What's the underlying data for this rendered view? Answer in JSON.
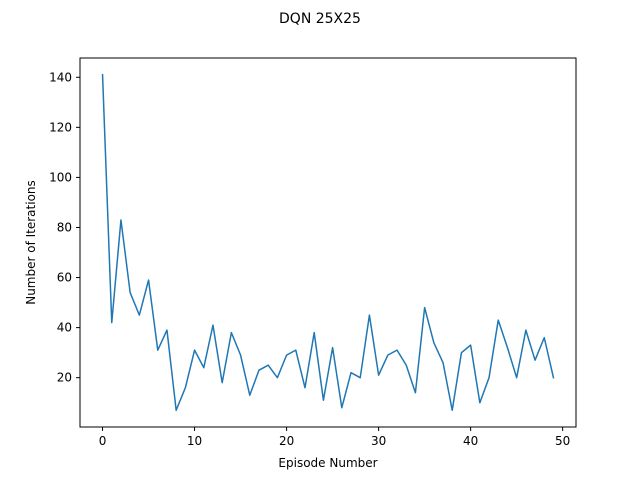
{
  "chart_data": {
    "type": "line",
    "title": "DQN 25X25",
    "xlabel": "Episode Number",
    "ylabel": "Number of Iterations",
    "xlim": [
      -2.45,
      51.45
    ],
    "ylim": [
      0.3,
      147.7
    ],
    "xticks": [
      0,
      10,
      20,
      30,
      40,
      50
    ],
    "yticks": [
      20,
      40,
      60,
      80,
      100,
      120,
      140
    ],
    "grid": false,
    "legend": "none",
    "series": [
      {
        "color": "#1f77b4",
        "x": [
          0,
          1,
          2,
          3,
          4,
          5,
          6,
          7,
          8,
          9,
          10,
          11,
          12,
          13,
          14,
          15,
          16,
          17,
          18,
          19,
          20,
          21,
          22,
          23,
          24,
          25,
          26,
          27,
          28,
          29,
          30,
          31,
          32,
          33,
          34,
          35,
          36,
          37,
          38,
          39,
          40,
          41,
          42,
          43,
          44,
          45,
          46,
          47,
          48,
          49
        ],
        "y": [
          141,
          42,
          83,
          54,
          45,
          59,
          31,
          39,
          7,
          16,
          31,
          24,
          41,
          18,
          38,
          29,
          13,
          23,
          25,
          20,
          29,
          31,
          16,
          38,
          11,
          32,
          8,
          22,
          20,
          45,
          21,
          29,
          31,
          25,
          14,
          48,
          34,
          26,
          7,
          30,
          33,
          10,
          20,
          43,
          32,
          20,
          39,
          27,
          36,
          20
        ]
      }
    ]
  }
}
